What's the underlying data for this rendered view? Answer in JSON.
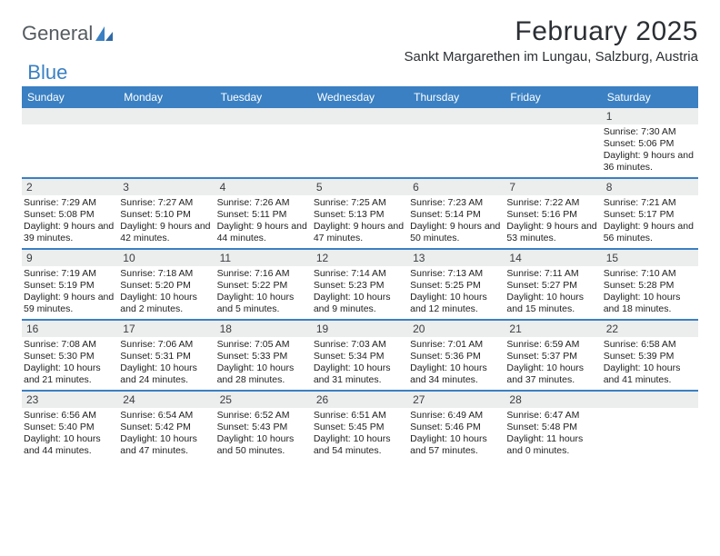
{
  "brand": {
    "part1": "General",
    "part2": "Blue"
  },
  "title": "February 2025",
  "location": "Sankt Margarethen im Lungau, Salzburg, Austria",
  "colors": {
    "header_bg": "#3a80c3",
    "header_text": "#ffffff",
    "daynum_bg": "#eceded",
    "divider": "#3a80c3",
    "body_text": "#222222",
    "page_bg": "#ffffff",
    "logo_gray": "#555b60",
    "logo_blue": "#3a80c3"
  },
  "typography": {
    "title_fontsize": 30,
    "location_fontsize": 15,
    "dayheader_fontsize": 12,
    "info_fontsize": 10.5
  },
  "day_names": [
    "Sunday",
    "Monday",
    "Tuesday",
    "Wednesday",
    "Thursday",
    "Friday",
    "Saturday"
  ],
  "weeks": [
    [
      {
        "n": "",
        "sunrise": "",
        "sunset": "",
        "daylight": ""
      },
      {
        "n": "",
        "sunrise": "",
        "sunset": "",
        "daylight": ""
      },
      {
        "n": "",
        "sunrise": "",
        "sunset": "",
        "daylight": ""
      },
      {
        "n": "",
        "sunrise": "",
        "sunset": "",
        "daylight": ""
      },
      {
        "n": "",
        "sunrise": "",
        "sunset": "",
        "daylight": ""
      },
      {
        "n": "",
        "sunrise": "",
        "sunset": "",
        "daylight": ""
      },
      {
        "n": "1",
        "sunrise": "Sunrise: 7:30 AM",
        "sunset": "Sunset: 5:06 PM",
        "daylight": "Daylight: 9 hours and 36 minutes."
      }
    ],
    [
      {
        "n": "2",
        "sunrise": "Sunrise: 7:29 AM",
        "sunset": "Sunset: 5:08 PM",
        "daylight": "Daylight: 9 hours and 39 minutes."
      },
      {
        "n": "3",
        "sunrise": "Sunrise: 7:27 AM",
        "sunset": "Sunset: 5:10 PM",
        "daylight": "Daylight: 9 hours and 42 minutes."
      },
      {
        "n": "4",
        "sunrise": "Sunrise: 7:26 AM",
        "sunset": "Sunset: 5:11 PM",
        "daylight": "Daylight: 9 hours and 44 minutes."
      },
      {
        "n": "5",
        "sunrise": "Sunrise: 7:25 AM",
        "sunset": "Sunset: 5:13 PM",
        "daylight": "Daylight: 9 hours and 47 minutes."
      },
      {
        "n": "6",
        "sunrise": "Sunrise: 7:23 AM",
        "sunset": "Sunset: 5:14 PM",
        "daylight": "Daylight: 9 hours and 50 minutes."
      },
      {
        "n": "7",
        "sunrise": "Sunrise: 7:22 AM",
        "sunset": "Sunset: 5:16 PM",
        "daylight": "Daylight: 9 hours and 53 minutes."
      },
      {
        "n": "8",
        "sunrise": "Sunrise: 7:21 AM",
        "sunset": "Sunset: 5:17 PM",
        "daylight": "Daylight: 9 hours and 56 minutes."
      }
    ],
    [
      {
        "n": "9",
        "sunrise": "Sunrise: 7:19 AM",
        "sunset": "Sunset: 5:19 PM",
        "daylight": "Daylight: 9 hours and 59 minutes."
      },
      {
        "n": "10",
        "sunrise": "Sunrise: 7:18 AM",
        "sunset": "Sunset: 5:20 PM",
        "daylight": "Daylight: 10 hours and 2 minutes."
      },
      {
        "n": "11",
        "sunrise": "Sunrise: 7:16 AM",
        "sunset": "Sunset: 5:22 PM",
        "daylight": "Daylight: 10 hours and 5 minutes."
      },
      {
        "n": "12",
        "sunrise": "Sunrise: 7:14 AM",
        "sunset": "Sunset: 5:23 PM",
        "daylight": "Daylight: 10 hours and 9 minutes."
      },
      {
        "n": "13",
        "sunrise": "Sunrise: 7:13 AM",
        "sunset": "Sunset: 5:25 PM",
        "daylight": "Daylight: 10 hours and 12 minutes."
      },
      {
        "n": "14",
        "sunrise": "Sunrise: 7:11 AM",
        "sunset": "Sunset: 5:27 PM",
        "daylight": "Daylight: 10 hours and 15 minutes."
      },
      {
        "n": "15",
        "sunrise": "Sunrise: 7:10 AM",
        "sunset": "Sunset: 5:28 PM",
        "daylight": "Daylight: 10 hours and 18 minutes."
      }
    ],
    [
      {
        "n": "16",
        "sunrise": "Sunrise: 7:08 AM",
        "sunset": "Sunset: 5:30 PM",
        "daylight": "Daylight: 10 hours and 21 minutes."
      },
      {
        "n": "17",
        "sunrise": "Sunrise: 7:06 AM",
        "sunset": "Sunset: 5:31 PM",
        "daylight": "Daylight: 10 hours and 24 minutes."
      },
      {
        "n": "18",
        "sunrise": "Sunrise: 7:05 AM",
        "sunset": "Sunset: 5:33 PM",
        "daylight": "Daylight: 10 hours and 28 minutes."
      },
      {
        "n": "19",
        "sunrise": "Sunrise: 7:03 AM",
        "sunset": "Sunset: 5:34 PM",
        "daylight": "Daylight: 10 hours and 31 minutes."
      },
      {
        "n": "20",
        "sunrise": "Sunrise: 7:01 AM",
        "sunset": "Sunset: 5:36 PM",
        "daylight": "Daylight: 10 hours and 34 minutes."
      },
      {
        "n": "21",
        "sunrise": "Sunrise: 6:59 AM",
        "sunset": "Sunset: 5:37 PM",
        "daylight": "Daylight: 10 hours and 37 minutes."
      },
      {
        "n": "22",
        "sunrise": "Sunrise: 6:58 AM",
        "sunset": "Sunset: 5:39 PM",
        "daylight": "Daylight: 10 hours and 41 minutes."
      }
    ],
    [
      {
        "n": "23",
        "sunrise": "Sunrise: 6:56 AM",
        "sunset": "Sunset: 5:40 PM",
        "daylight": "Daylight: 10 hours and 44 minutes."
      },
      {
        "n": "24",
        "sunrise": "Sunrise: 6:54 AM",
        "sunset": "Sunset: 5:42 PM",
        "daylight": "Daylight: 10 hours and 47 minutes."
      },
      {
        "n": "25",
        "sunrise": "Sunrise: 6:52 AM",
        "sunset": "Sunset: 5:43 PM",
        "daylight": "Daylight: 10 hours and 50 minutes."
      },
      {
        "n": "26",
        "sunrise": "Sunrise: 6:51 AM",
        "sunset": "Sunset: 5:45 PM",
        "daylight": "Daylight: 10 hours and 54 minutes."
      },
      {
        "n": "27",
        "sunrise": "Sunrise: 6:49 AM",
        "sunset": "Sunset: 5:46 PM",
        "daylight": "Daylight: 10 hours and 57 minutes."
      },
      {
        "n": "28",
        "sunrise": "Sunrise: 6:47 AM",
        "sunset": "Sunset: 5:48 PM",
        "daylight": "Daylight: 11 hours and 0 minutes."
      },
      {
        "n": "",
        "sunrise": "",
        "sunset": "",
        "daylight": ""
      }
    ]
  ]
}
